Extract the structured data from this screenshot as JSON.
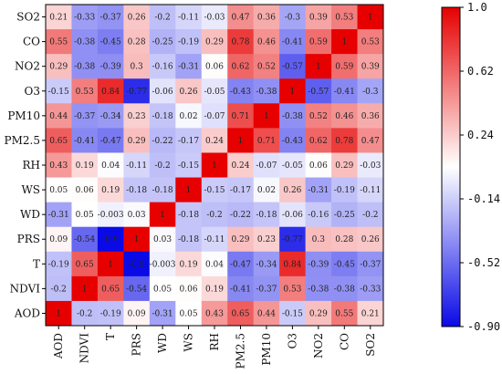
{
  "chart_data": {
    "type": "heatmap",
    "rows": [
      "SO2",
      "CO",
      "NO2",
      "O3",
      "PM10",
      "PM2.5",
      "RH",
      "WS",
      "WD",
      "PRS",
      "T",
      "NDVI",
      "AOD"
    ],
    "columns": [
      "AOD",
      "NDVI",
      "T",
      "PRS",
      "WD",
      "WS",
      "RH",
      "PM2.5",
      "PM10",
      "O3",
      "NO2",
      "CO",
      "SO2"
    ],
    "values": [
      [
        "0.21",
        "-0.33",
        "-0.37",
        "0.26",
        "-0.2",
        "-0.11",
        "-0.03",
        "0.47",
        "0.36",
        "-0.3",
        "0.39",
        "0.53",
        "1"
      ],
      [
        "0.55",
        "-0.38",
        "-0.45",
        "0.28",
        "-0.25",
        "-0.19",
        "0.29",
        "0.78",
        "0.46",
        "-0.41",
        "0.59",
        "1",
        "0.53"
      ],
      [
        "0.29",
        "-0.38",
        "-0.39",
        "0.3",
        "-0.16",
        "-0.31",
        "0.06",
        "0.62",
        "0.52",
        "-0.57",
        "1",
        "0.59",
        "0.39"
      ],
      [
        "-0.15",
        "0.53",
        "0.84",
        "-0.77",
        "-0.06",
        "0.26",
        "-0.05",
        "-0.43",
        "-0.38",
        "1",
        "-0.57",
        "-0.41",
        "-0.3"
      ],
      [
        "0.44",
        "-0.37",
        "-0.34",
        "0.23",
        "-0.18",
        "0.02",
        "-0.07",
        "0.71",
        "1",
        "-0.38",
        "0.52",
        "0.46",
        "0.36"
      ],
      [
        "0.65",
        "-0.41",
        "-0.47",
        "0.29",
        "-0.22",
        "-0.17",
        "0.24",
        "1",
        "0.71",
        "-0.43",
        "0.62",
        "0.78",
        "0.47"
      ],
      [
        "0.43",
        "0.19",
        "0.04",
        "-0.11",
        "-0.2",
        "-0.15",
        "1",
        "0.24",
        "-0.07",
        "-0.05",
        "0.06",
        "0.29",
        "-0.03"
      ],
      [
        "0.05",
        "0.06",
        "0.19",
        "-0.18",
        "-0.18",
        "1",
        "-0.15",
        "-0.17",
        "0.02",
        "0.26",
        "-0.31",
        "-0.19",
        "-0.11"
      ],
      [
        "-0.31",
        "0.05",
        "-0.003",
        "0.03",
        "1",
        "-0.18",
        "-0.2",
        "-0.22",
        "-0.18",
        "-0.06",
        "-0.16",
        "-0.25",
        "-0.2"
      ],
      [
        "0.09",
        "-0.54",
        "-0.9",
        "1",
        "0.03",
        "-0.18",
        "-0.11",
        "0.29",
        "0.23",
        "-0.77",
        "0.3",
        "0.28",
        "0.26"
      ],
      [
        "-0.19",
        "0.65",
        "1",
        "-0.9",
        "-0.003",
        "0.19",
        "0.04",
        "-0.47",
        "-0.34",
        "0.84",
        "-0.39",
        "-0.45",
        "-0.37"
      ],
      [
        "-0.2",
        "1",
        "0.65",
        "-0.54",
        "0.05",
        "0.06",
        "0.19",
        "-0.41",
        "-0.37",
        "0.53",
        "-0.38",
        "-0.38",
        "-0.33"
      ],
      [
        "1",
        "-0.2",
        "-0.19",
        "0.09",
        "-0.31",
        "0.05",
        "0.43",
        "0.65",
        "0.44",
        "-0.15",
        "0.29",
        "0.55",
        "0.21"
      ]
    ],
    "colorbar": {
      "min": -0.9,
      "max": 1.0,
      "ticks": [
        "1.0",
        "0.62",
        "0.24",
        "-0.14",
        "-0.52",
        "-0.90"
      ],
      "colors": {
        "low": "#0a0ae6",
        "mid": "#ffffff",
        "high": "#e60000"
      }
    },
    "grid": false
  }
}
